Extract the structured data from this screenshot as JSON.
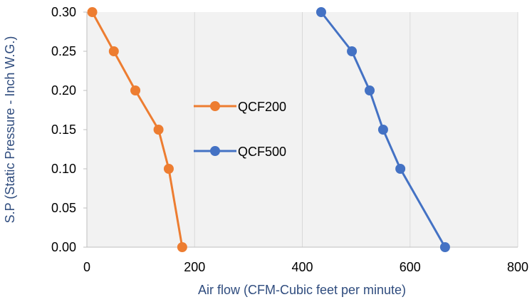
{
  "chart_data": {
    "type": "line",
    "title": "",
    "xlabel": "Air flow (CFM-Cubic feet per minute)",
    "ylabel": "S.P (Static Pressure - Inch W.G.)",
    "xlim": [
      0,
      800
    ],
    "ylim": [
      0.0,
      0.3
    ],
    "x_ticks": [
      0,
      200,
      400,
      600,
      800
    ],
    "y_ticks": [
      0.0,
      0.05,
      0.1,
      0.15,
      0.2,
      0.25,
      0.3
    ],
    "x_tick_labels": [
      "0",
      "200",
      "400",
      "600",
      "800"
    ],
    "y_tick_labels": [
      "0.00",
      "0.05",
      "0.10",
      "0.15",
      "0.20",
      "0.25",
      "0.30"
    ],
    "grid": "vertical",
    "legend_position": "center",
    "series": [
      {
        "name": "QCF200",
        "color": "#ED7D31",
        "x": [
          10,
          50,
          90,
          133,
          152,
          177
        ],
        "y": [
          0.3,
          0.25,
          0.2,
          0.15,
          0.1,
          0.0
        ]
      },
      {
        "name": "QCF500",
        "color": "#4472C4",
        "x": [
          435,
          492,
          525,
          550,
          582,
          665
        ],
        "y": [
          0.3,
          0.25,
          0.2,
          0.15,
          0.1,
          0.0
        ]
      }
    ],
    "colors": {
      "plot_background": "#F2F2F2",
      "gridline": "#D9D9D9",
      "axis_label_text": "#2F4C7E",
      "tick_text": "#000000"
    }
  }
}
